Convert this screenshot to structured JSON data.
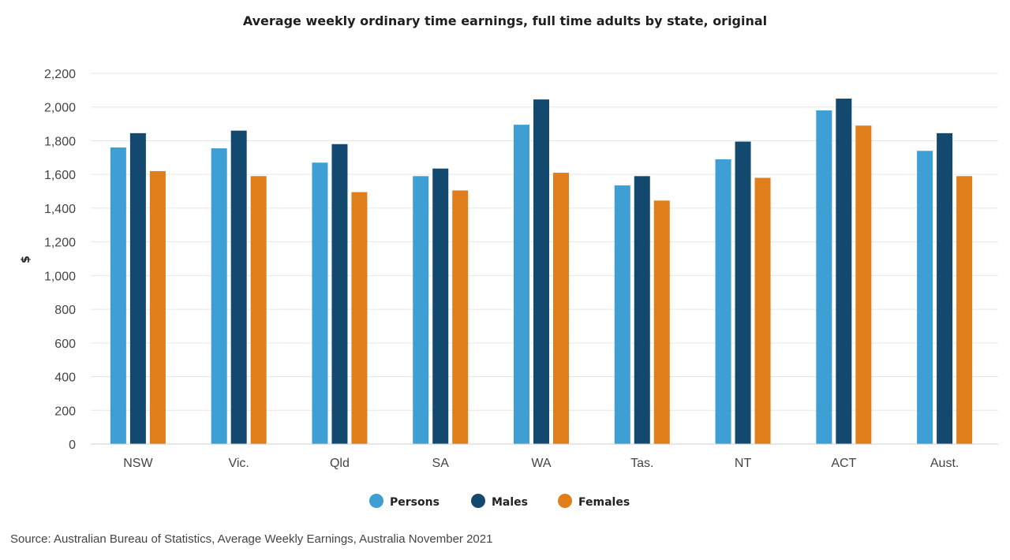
{
  "chart_data": {
    "type": "bar",
    "title": "Average weekly ordinary time earnings, full time adults by state, original",
    "xlabel": "",
    "ylabel": "$",
    "ylim": [
      0,
      2200
    ],
    "yticks": [
      0,
      200,
      400,
      600,
      800,
      1000,
      1200,
      1400,
      1600,
      1800,
      2000,
      2200
    ],
    "ytick_labels": [
      "0",
      "200",
      "400",
      "600",
      "800",
      "1,000",
      "1,200",
      "1,400",
      "1,600",
      "1,800",
      "2,000",
      "2,200"
    ],
    "categories": [
      "NSW",
      "Vic.",
      "Qld",
      "SA",
      "WA",
      "Tas.",
      "NT",
      "ACT",
      "Aust."
    ],
    "series": [
      {
        "name": "Persons",
        "color": "#3d9fd3",
        "values": [
          1760,
          1755,
          1670,
          1590,
          1895,
          1535,
          1690,
          1980,
          1740
        ]
      },
      {
        "name": "Males",
        "color": "#14496f",
        "values": [
          1845,
          1860,
          1780,
          1635,
          2045,
          1590,
          1795,
          2050,
          1845
        ]
      },
      {
        "name": "Females",
        "color": "#e07e1b",
        "values": [
          1620,
          1590,
          1495,
          1505,
          1610,
          1445,
          1580,
          1890,
          1590
        ]
      }
    ],
    "grid": true,
    "legend_position": "bottom-center"
  },
  "source_text": "Source: Australian Bureau of Statistics, Average Weekly Earnings, Australia November 2021"
}
